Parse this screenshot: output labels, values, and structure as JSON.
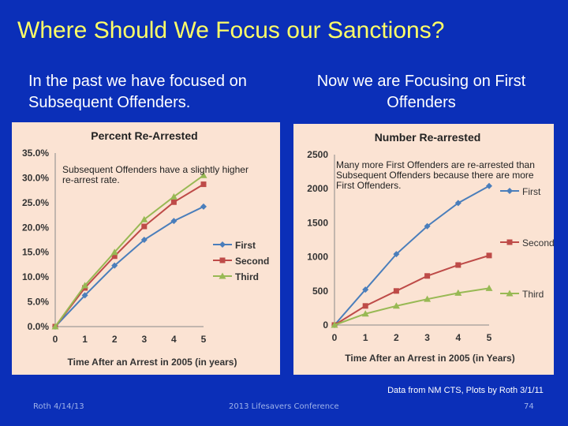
{
  "slide": {
    "title": "Where Should We Focus our Sanctions?",
    "left_heading": "In the past we have focused on Subsequent Offenders.",
    "right_heading": "Now we are Focusing on First Offenders",
    "source_note": "Data from NM CTS, Plots by Roth 3/1/11",
    "footer_left": "Roth 4/14/13",
    "footer_center": "2013 Lifesavers Conference",
    "page_number": "74",
    "background_color": "#0b2fb8",
    "title_color": "#ffff66"
  },
  "chart_data": [
    {
      "type": "line",
      "title": "Percent Re-Arrested",
      "xlabel": "Time After an Arrest in 2005 (in years)",
      "ylabel": "",
      "x": [
        0,
        1,
        2,
        3,
        4,
        5
      ],
      "xlim": [
        0,
        5
      ],
      "ylim": [
        0,
        35
      ],
      "y_unit": "%",
      "yticks": [
        "0.0%",
        "5.0%",
        "10.0%",
        "15.0%",
        "20.0%",
        "25.0%",
        "30.0%",
        "35.0%"
      ],
      "xticks": [
        "0",
        "1",
        "2",
        "3",
        "4",
        "5"
      ],
      "grid": false,
      "legend_position": "right",
      "annotation": "Subsequent Offenders have a slightly higher re-arrest rate.",
      "series": [
        {
          "name": "First",
          "color": "#4a7ebb",
          "marker": "diamond",
          "values": [
            0,
            6.3,
            12.3,
            17.5,
            21.3,
            24.2
          ]
        },
        {
          "name": "Second",
          "color": "#be4b48",
          "marker": "square",
          "values": [
            0,
            7.8,
            14.2,
            20.2,
            25.1,
            28.7
          ]
        },
        {
          "name": "Third",
          "color": "#98b954",
          "marker": "triangle",
          "values": [
            0,
            8.3,
            15.0,
            21.6,
            26.2,
            30.5
          ]
        }
      ]
    },
    {
      "type": "line",
      "title": "Number Re-arrested",
      "xlabel": "Time After an Arrest in 2005 (in Years)",
      "ylabel": "",
      "x": [
        0,
        1,
        2,
        3,
        4,
        5
      ],
      "xlim": [
        0,
        5
      ],
      "ylim": [
        0,
        2500
      ],
      "yticks": [
        "0",
        "500",
        "1000",
        "1500",
        "2000",
        "2500"
      ],
      "xticks": [
        "0",
        "1",
        "2",
        "3",
        "4",
        "5"
      ],
      "grid": false,
      "legend_position": "right",
      "annotation": "Many more First Offenders are re-arrested than Subsequent Offenders because there are more First Offenders.",
      "series": [
        {
          "name": "First",
          "color": "#4a7ebb",
          "marker": "diamond",
          "values": [
            0,
            520,
            1040,
            1450,
            1790,
            2040
          ]
        },
        {
          "name": "Second",
          "color": "#be4b48",
          "marker": "square",
          "values": [
            0,
            280,
            500,
            720,
            880,
            1020
          ]
        },
        {
          "name": "Third",
          "color": "#98b954",
          "marker": "triangle",
          "values": [
            0,
            165,
            280,
            380,
            470,
            540
          ]
        }
      ]
    }
  ]
}
